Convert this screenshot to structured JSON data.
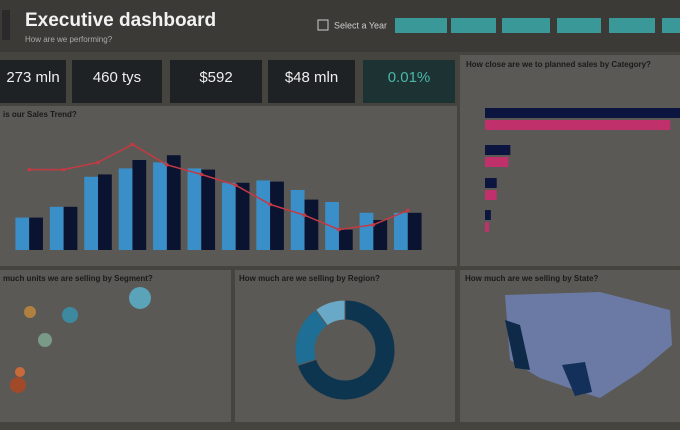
{
  "header": {
    "title": "Executive dashboard",
    "subtitle": "How are we performing?",
    "year_filter": "Select a Year"
  },
  "kpis": [
    "273 mln",
    "460 tys",
    "$592",
    "$48 mln",
    "0.01%"
  ],
  "panels": {
    "trend_title": "is our Sales Trend?",
    "category_title": "How close are we to planned sales by Category?",
    "segment_title": "much units we are selling by Segment?",
    "region_title": "How much are we selling by Region?",
    "state_title": "How much are we selling by State?"
  },
  "chart_data": [
    {
      "type": "bar",
      "ylim": [
        0,
        100
      ],
      "series": [
        {
          "color": "#3b8fc9",
          "values": [
            27,
            36,
            61,
            68,
            73,
            68,
            56,
            58,
            50,
            40,
            31,
            31
          ]
        },
        {
          "color": "#0a1430",
          "values": [
            27,
            36,
            63,
            75,
            79,
            67,
            56,
            57,
            42,
            17,
            25,
            31
          ]
        },
        {
          "type": "line",
          "color": "#c23a44",
          "values": [
            67,
            67,
            73,
            88,
            71,
            63,
            54,
            38,
            29,
            17,
            21,
            33
          ]
        }
      ]
    },
    {
      "type": "bar",
      "orientation": "horizontal",
      "xlim": [
        0,
        100
      ],
      "series": [
        {
          "color": "#0b1540",
          "values": [
            100,
            13,
            6,
            3
          ]
        },
        {
          "color": "#c0306a",
          "values": [
            95,
            12,
            6,
            2
          ]
        }
      ]
    },
    {
      "type": "pie",
      "hole": 0.6,
      "values": [
        70,
        20,
        10
      ],
      "colors": [
        "#0e3550",
        "#1f6e95",
        "#69a8c6"
      ]
    }
  ]
}
